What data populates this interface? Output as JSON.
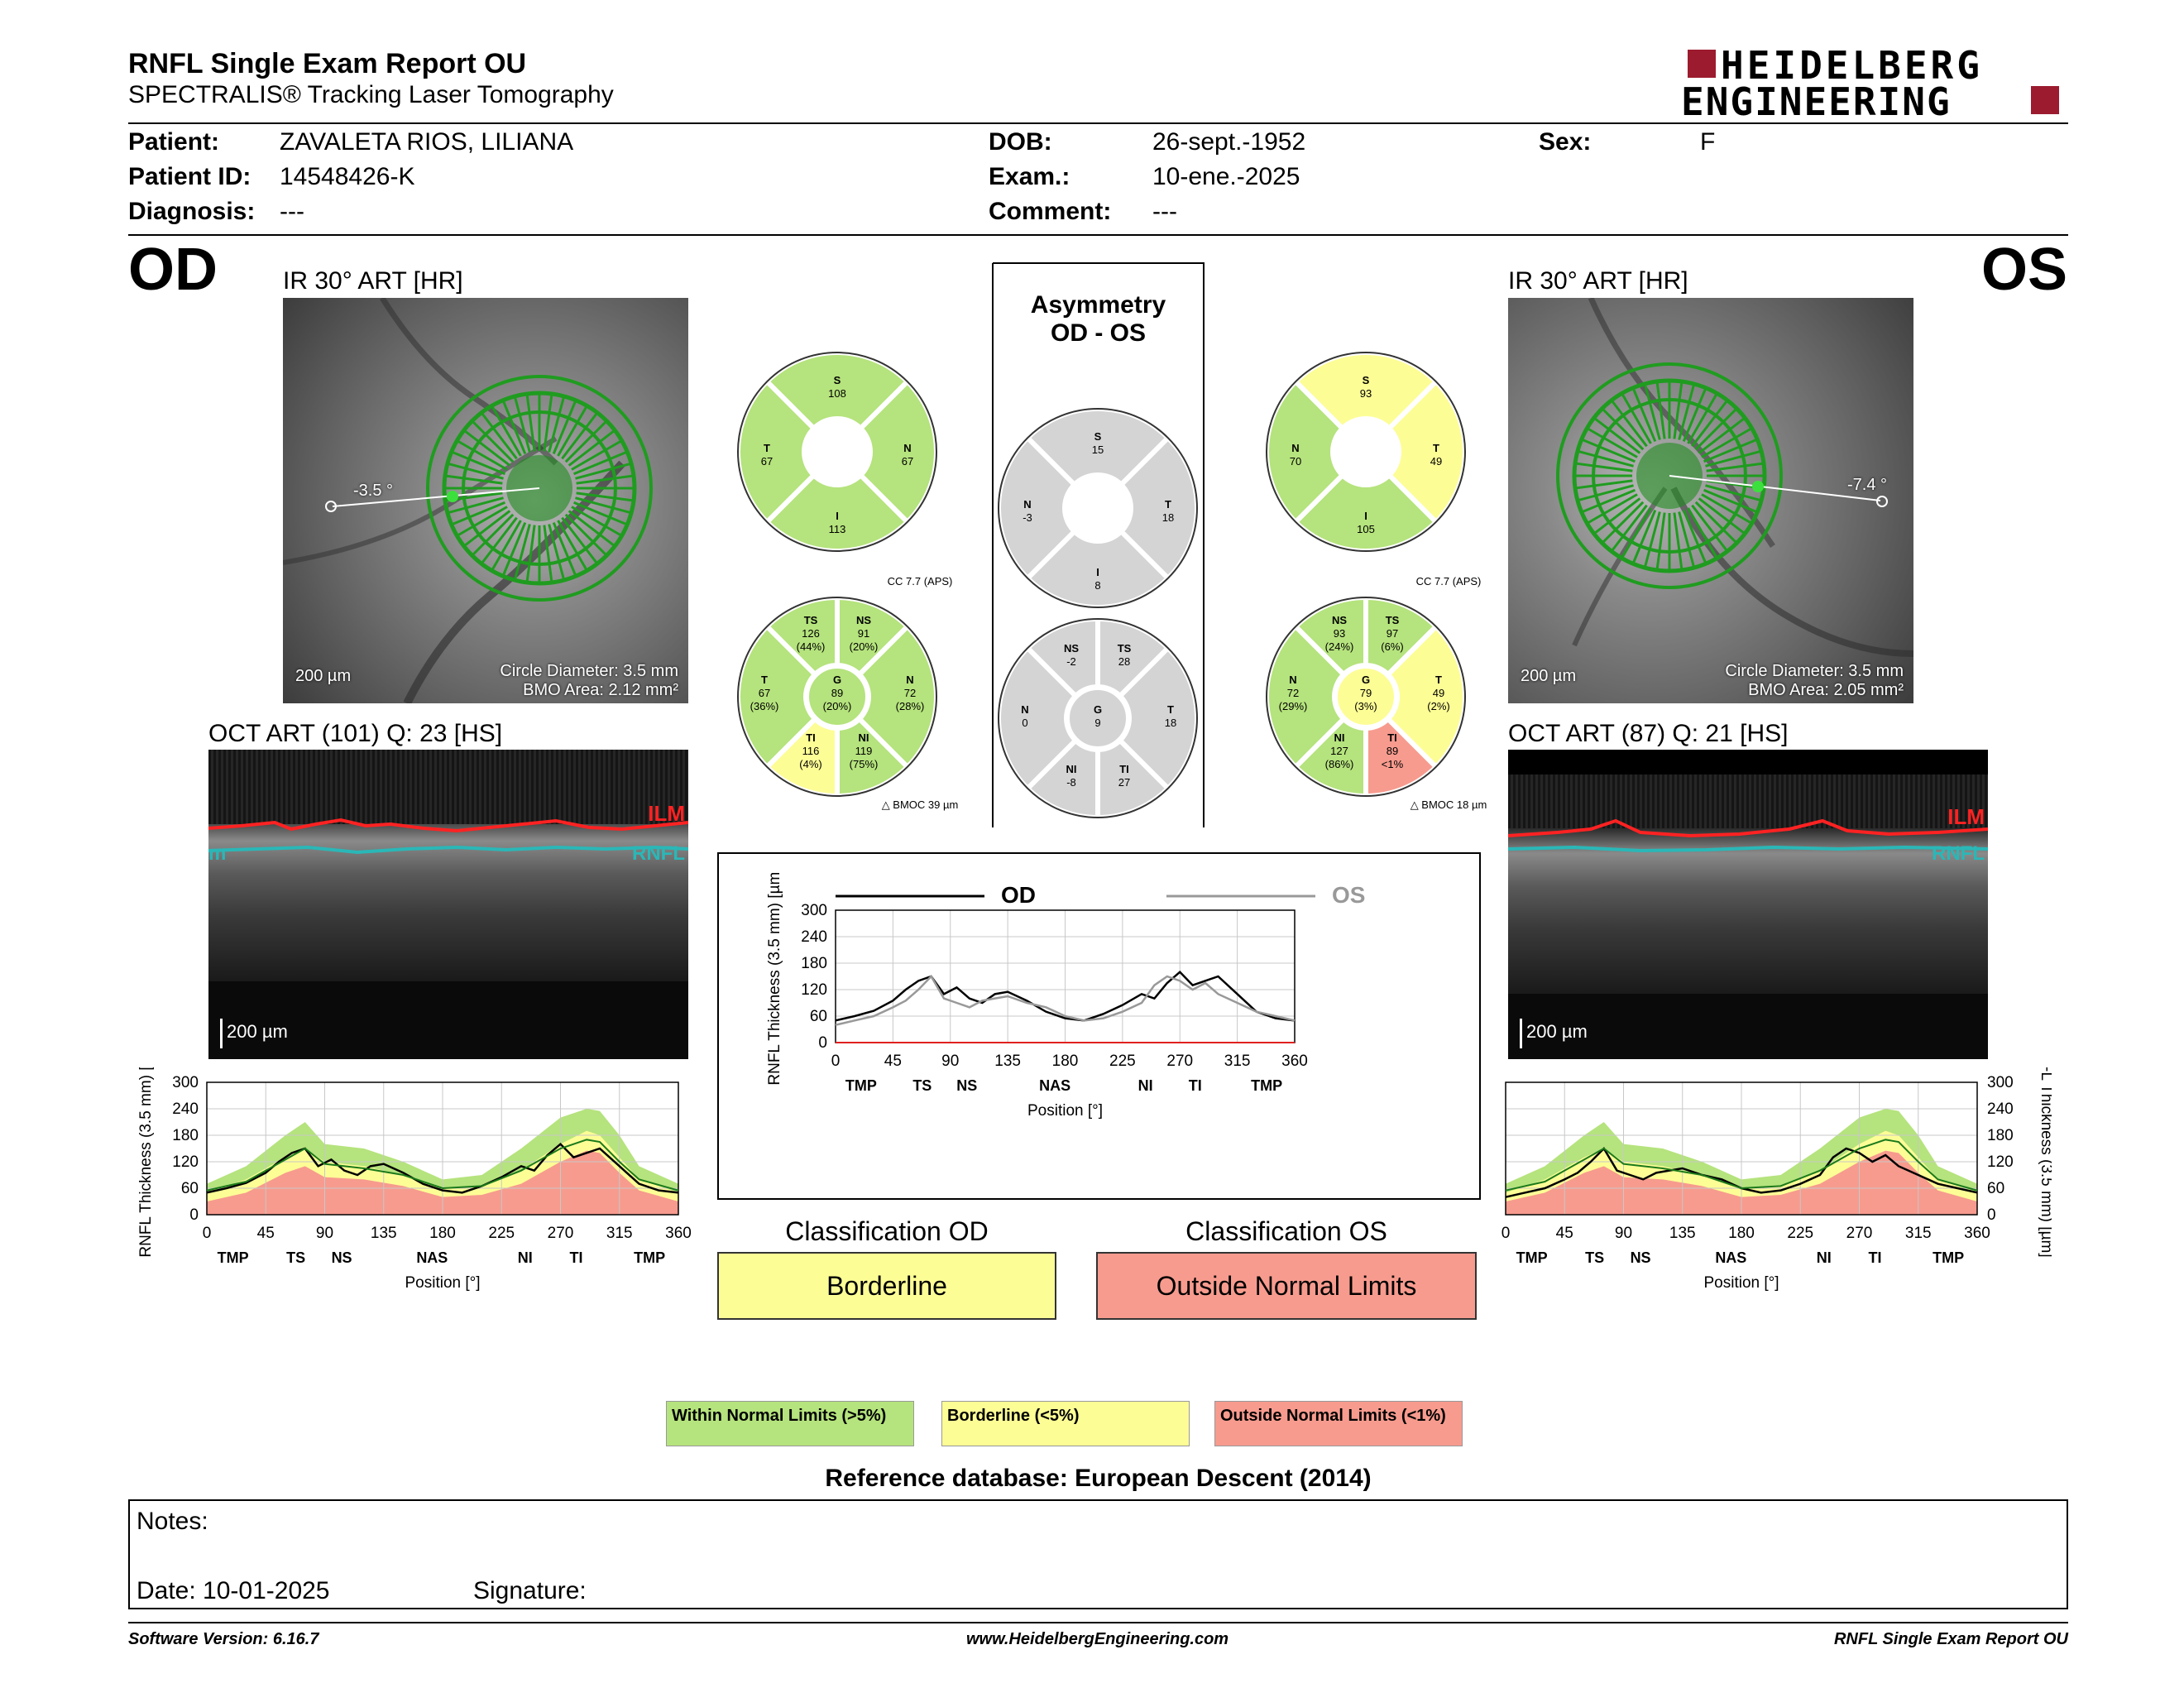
{
  "header": {
    "title": "RNFL Single Exam Report OU",
    "subtitle": "SPECTRALIS® Tracking Laser Tomography",
    "brand_line1": "HEIDELBERG",
    "brand_line2": "ENGINEERING"
  },
  "patient": {
    "patient_label": "Patient:",
    "patient_value": "ZAVALETA RIOS, LILIANA",
    "id_label": "Patient ID:",
    "id_value": "14548426-K",
    "diag_label": "Diagnosis:",
    "diag_value": "---",
    "dob_label": "DOB:",
    "dob_value": "26-sept.-1952",
    "exam_label": "Exam.:",
    "exam_value": "10-ene.-2025",
    "comment_label": "Comment:",
    "comment_value": "---",
    "sex_label": "Sex:",
    "sex_value": "F"
  },
  "od": {
    "eye": "OD",
    "ir_label": "IR 30° ART [HR]",
    "oct_label": "OCT ART (101) Q: 23 [HS]",
    "angle": "-3.5 °",
    "scale": "200 µm",
    "circle_diameter": "Circle Diameter: 3.5 mm",
    "bmo_area": "BMO Area: 2.12 mm²",
    "oct_scale": "200 µm",
    "ilm": "ILM",
    "rnfl": "RNFL",
    "rnfl_partial": "m",
    "sectors4": {
      "s": "S",
      "s_val": "108",
      "t": "T",
      "t_val": "67",
      "n": "N",
      "n_val": "67",
      "i": "I",
      "i_val": "113"
    },
    "cc": "CC 7.7 (APS)",
    "bmoc": "BMOC 39 µm",
    "sectors6": {
      "ts": [
        "TS",
        "126",
        "(44%)"
      ],
      "ns": [
        "NS",
        "91",
        "(20%)"
      ],
      "t": [
        "T",
        "67",
        "(36%)"
      ],
      "g": [
        "G",
        "89",
        "(20%)"
      ],
      "n": [
        "N",
        "72",
        "(28%)"
      ],
      "ti": [
        "TI",
        "116",
        "(4%)"
      ],
      "ni": [
        "NI",
        "119",
        "(75%)"
      ]
    }
  },
  "os": {
    "eye": "OS",
    "ir_label": "IR 30° ART [HR]",
    "oct_label": "OCT ART (87) Q: 21 [HS]",
    "angle": "-7.4 °",
    "scale": "200 µm",
    "circle_diameter": "Circle Diameter: 3.5 mm",
    "bmo_area": "BMO Area: 2.05 mm²",
    "oct_scale": "200 µm",
    "ilm": "ILM",
    "rnfl": "RNFL",
    "sectors4": {
      "s": "S",
      "s_val": "93",
      "t": "T",
      "t_val": "49",
      "n": "N",
      "n_val": "70",
      "i": "I",
      "i_val": "105"
    },
    "cc": "CC 7.7 (APS)",
    "bmoc": "BMOC 18 µm",
    "sectors6": {
      "ts": [
        "TS",
        "97",
        "(6%)"
      ],
      "ns": [
        "NS",
        "93",
        "(24%)"
      ],
      "t": [
        "T",
        "49",
        "(2%)"
      ],
      "g": [
        "G",
        "79",
        "(3%)"
      ],
      "n": [
        "N",
        "72",
        "(29%)"
      ],
      "ti": [
        "TI",
        "89",
        "<1%"
      ],
      "ni": [
        "NI",
        "127",
        "(86%)"
      ]
    }
  },
  "asym": {
    "title1": "Asymmetry",
    "title2": "OD - OS",
    "sectors4": {
      "s": "S",
      "s_val": "15",
      "n": "N",
      "n_val": "-3",
      "t": "T",
      "t_val": "18",
      "i": "I",
      "i_val": "8"
    },
    "sectors6": {
      "ns": [
        "NS",
        "-2"
      ],
      "ts": [
        "TS",
        "28"
      ],
      "n": [
        "N",
        "0"
      ],
      "g": [
        "G",
        "9"
      ],
      "t": [
        "T",
        "18"
      ],
      "ni": [
        "NI",
        "-8"
      ],
      "ti": [
        "TI",
        "27"
      ]
    }
  },
  "colors": {
    "green": "#b5e37d",
    "yellow": "#fdfd96",
    "red": "#f79b8e",
    "gray": "#d4d4d4",
    "od_line": "#000000",
    "os_line": "#999999"
  },
  "chart_data": [
    {
      "type": "line",
      "title": "",
      "xlabel": "Position [°]",
      "ylabel": "RNFL Thickness (3.5 mm) [µm]",
      "x_ticks": [
        "0",
        "45",
        "90",
        "135",
        "180",
        "225",
        "270",
        "315",
        "360"
      ],
      "y_ticks": [
        "0",
        "60",
        "120",
        "180",
        "240",
        "300"
      ],
      "sector_labels": [
        "TMP",
        "TS",
        "NS",
        "NAS",
        "NI",
        "TI",
        "TMP"
      ],
      "xlim": [
        0,
        360
      ],
      "ylim": [
        0,
        300
      ],
      "series": [
        {
          "name": "OD",
          "x": [
            0,
            15,
            30,
            45,
            55,
            65,
            75,
            85,
            95,
            105,
            115,
            125,
            135,
            150,
            165,
            180,
            195,
            210,
            225,
            240,
            250,
            260,
            270,
            280,
            290,
            300,
            315,
            330,
            345,
            360
          ],
          "y": [
            50,
            60,
            72,
            95,
            120,
            140,
            150,
            110,
            125,
            100,
            90,
            110,
            115,
            95,
            70,
            55,
            50,
            65,
            85,
            110,
            100,
            135,
            160,
            130,
            140,
            150,
            110,
            70,
            55,
            50
          ]
        }
      ]
    },
    {
      "type": "line",
      "title": "",
      "xlabel": "Position [°]",
      "ylabel": "RNFL Thickness (3.5 mm) [µm]",
      "legend": [
        "OD",
        "OS"
      ],
      "x_ticks": [
        "0",
        "45",
        "90",
        "135",
        "180",
        "225",
        "270",
        "315",
        "360"
      ],
      "y_ticks": [
        "0",
        "60",
        "120",
        "180",
        "240",
        "300"
      ],
      "sector_labels": [
        "TMP",
        "TS",
        "NS",
        "NAS",
        "NI",
        "TI",
        "TMP"
      ],
      "xlim": [
        0,
        360
      ],
      "ylim": [
        0,
        300
      ],
      "series": [
        {
          "name": "OD",
          "x": [
            0,
            15,
            30,
            45,
            55,
            65,
            75,
            85,
            95,
            105,
            115,
            125,
            135,
            150,
            165,
            180,
            195,
            210,
            225,
            240,
            250,
            260,
            270,
            280,
            290,
            300,
            315,
            330,
            345,
            360
          ],
          "y": [
            50,
            60,
            72,
            95,
            120,
            140,
            150,
            110,
            125,
            100,
            90,
            110,
            115,
            95,
            70,
            55,
            50,
            65,
            85,
            110,
            100,
            135,
            160,
            130,
            140,
            150,
            110,
            70,
            55,
            50
          ]
        },
        {
          "name": "OS",
          "x": [
            0,
            15,
            30,
            45,
            55,
            65,
            75,
            85,
            95,
            105,
            115,
            125,
            135,
            150,
            165,
            180,
            195,
            210,
            225,
            240,
            250,
            260,
            270,
            280,
            290,
            300,
            315,
            330,
            345,
            360
          ],
          "y": [
            40,
            50,
            60,
            80,
            95,
            120,
            150,
            100,
            90,
            80,
            95,
            100,
            105,
            90,
            80,
            60,
            50,
            55,
            70,
            90,
            130,
            150,
            140,
            120,
            135,
            110,
            90,
            70,
            60,
            50
          ]
        }
      ]
    },
    {
      "type": "line",
      "title": "",
      "xlabel": "Position [°]",
      "ylabel": "RNFL Thickness (3.5 mm) [µm]",
      "x_ticks": [
        "0",
        "45",
        "90",
        "135",
        "180",
        "225",
        "270",
        "315",
        "360"
      ],
      "y_ticks": [
        "0",
        "60",
        "120",
        "180",
        "240",
        "300"
      ],
      "sector_labels": [
        "TMP",
        "TS",
        "NS",
        "NAS",
        "NI",
        "TI",
        "TMP"
      ],
      "xlim": [
        0,
        360
      ],
      "ylim": [
        0,
        300
      ],
      "series": [
        {
          "name": "OS",
          "x": [
            0,
            15,
            30,
            45,
            55,
            65,
            75,
            85,
            95,
            105,
            115,
            125,
            135,
            150,
            165,
            180,
            195,
            210,
            225,
            240,
            250,
            260,
            270,
            280,
            290,
            300,
            315,
            330,
            345,
            360
          ],
          "y": [
            40,
            50,
            60,
            80,
            95,
            120,
            150,
            100,
            90,
            80,
            95,
            100,
            105,
            90,
            80,
            60,
            50,
            55,
            70,
            90,
            130,
            150,
            140,
            120,
            135,
            110,
            90,
            70,
            60,
            50
          ]
        }
      ]
    }
  ],
  "normative": {
    "x": [
      0,
      30,
      60,
      75,
      90,
      120,
      150,
      180,
      210,
      240,
      270,
      290,
      300,
      315,
      330,
      360
    ],
    "green_top": [
      70,
      110,
      180,
      210,
      160,
      150,
      120,
      80,
      90,
      150,
      220,
      240,
      235,
      180,
      110,
      70
    ],
    "yellow_top": [
      50,
      80,
      130,
      150,
      120,
      110,
      90,
      60,
      65,
      100,
      160,
      190,
      180,
      130,
      80,
      50
    ],
    "red_top": [
      30,
      50,
      95,
      110,
      85,
      80,
      65,
      40,
      45,
      70,
      120,
      145,
      140,
      95,
      55,
      30
    ]
  },
  "normative_os_mean": [
    55,
    75,
    125,
    150,
    115,
    105,
    90,
    60,
    65,
    100,
    150,
    170,
    165,
    120,
    80,
    55
  ],
  "classification": {
    "od_title": "Classification OD",
    "od_value": "Borderline",
    "os_title": "Classification OS",
    "os_value": "Outside Normal Limits"
  },
  "legend": {
    "within": "Within Normal Limits (>5%)",
    "borderline": "Borderline (<5%)",
    "outside": "Outside Normal Limits (<1%)"
  },
  "reference": "Reference database: European Descent (2014)",
  "notes": {
    "label": "Notes:",
    "date": "Date: 10-01-2025",
    "signature": "Signature:"
  },
  "footer": {
    "left": "Software Version: 6.16.7",
    "center": "www.HeidelbergEngineering.com",
    "right": "RNFL Single Exam Report OU"
  }
}
